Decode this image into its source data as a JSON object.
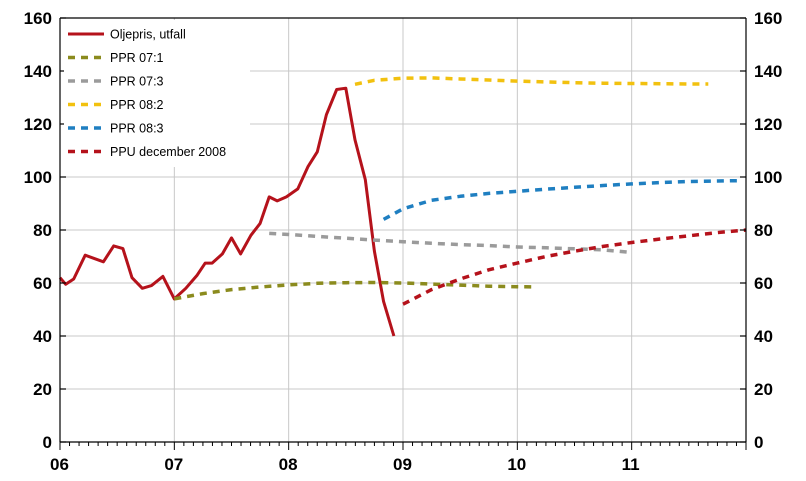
{
  "chart_data": {
    "type": "line",
    "x_tick_labels": [
      "06",
      "07",
      "08",
      "09",
      "10",
      "11"
    ],
    "x_range": [
      2006.0,
      2012.0
    ],
    "ylim": [
      0,
      160
    ],
    "y_ticks": [
      0,
      20,
      40,
      60,
      80,
      100,
      120,
      140,
      160
    ],
    "grid": true,
    "legend_position": "top-left",
    "series": [
      {
        "name": "Oljepris, utfall",
        "color": "#b5121b",
        "style": "solid",
        "points": [
          [
            2006.0,
            62
          ],
          [
            2006.05,
            59.5
          ],
          [
            2006.12,
            61.5
          ],
          [
            2006.22,
            70.5
          ],
          [
            2006.38,
            68
          ],
          [
            2006.47,
            74
          ],
          [
            2006.55,
            73
          ],
          [
            2006.63,
            62
          ],
          [
            2006.72,
            58
          ],
          [
            2006.8,
            59
          ],
          [
            2006.9,
            62.5
          ],
          [
            2007.0,
            54
          ],
          [
            2007.1,
            58
          ],
          [
            2007.2,
            63
          ],
          [
            2007.27,
            67.5
          ],
          [
            2007.33,
            67.5
          ],
          [
            2007.42,
            71
          ],
          [
            2007.5,
            77
          ],
          [
            2007.58,
            71
          ],
          [
            2007.67,
            78
          ],
          [
            2007.75,
            82.5
          ],
          [
            2007.83,
            92.5
          ],
          [
            2007.9,
            91
          ],
          [
            2007.98,
            92.5
          ],
          [
            2008.08,
            95.5
          ],
          [
            2008.17,
            104
          ],
          [
            2008.25,
            109.5
          ],
          [
            2008.33,
            123.5
          ],
          [
            2008.42,
            133
          ],
          [
            2008.5,
            133.5
          ],
          [
            2008.58,
            114
          ],
          [
            2008.67,
            99
          ],
          [
            2008.75,
            72
          ],
          [
            2008.83,
            53
          ],
          [
            2008.92,
            40
          ]
        ]
      },
      {
        "name": "PPR 07:1",
        "color": "#8b8b1e",
        "style": "dashed",
        "points": [
          [
            2007.0,
            54
          ],
          [
            2007.25,
            56
          ],
          [
            2007.5,
            57.5
          ],
          [
            2007.75,
            58.5
          ],
          [
            2008.0,
            59.3
          ],
          [
            2008.25,
            59.9
          ],
          [
            2008.5,
            60.1
          ],
          [
            2008.75,
            60.2
          ],
          [
            2009.0,
            60
          ],
          [
            2009.25,
            59.6
          ],
          [
            2009.5,
            59.2
          ],
          [
            2009.75,
            58.8
          ],
          [
            2010.0,
            58.6
          ],
          [
            2010.17,
            58.5
          ]
        ]
      },
      {
        "name": "PPR 07:3",
        "color": "#9b9b9b",
        "style": "dashed",
        "points": [
          [
            2007.83,
            78.7
          ],
          [
            2008.0,
            78.3
          ],
          [
            2008.25,
            77.6
          ],
          [
            2008.5,
            76.9
          ],
          [
            2008.75,
            76.2
          ],
          [
            2009.0,
            75.6
          ],
          [
            2009.25,
            75
          ],
          [
            2009.5,
            74.5
          ],
          [
            2009.75,
            74.1
          ],
          [
            2010.0,
            73.6
          ],
          [
            2010.25,
            73.3
          ],
          [
            2010.5,
            72.9
          ],
          [
            2010.75,
            72.5
          ],
          [
            2011.0,
            71.5
          ]
        ]
      },
      {
        "name": "PPR 08:2",
        "color": "#f2c10f",
        "style": "dashed",
        "points": [
          [
            2008.58,
            135
          ],
          [
            2008.75,
            136.5
          ],
          [
            2009.0,
            137.3
          ],
          [
            2009.25,
            137.4
          ],
          [
            2009.5,
            137
          ],
          [
            2009.75,
            136.6
          ],
          [
            2010.0,
            136.2
          ],
          [
            2010.25,
            135.9
          ],
          [
            2010.5,
            135.6
          ],
          [
            2010.75,
            135.4
          ],
          [
            2011.0,
            135.3
          ],
          [
            2011.25,
            135.2
          ],
          [
            2011.5,
            135.1
          ],
          [
            2011.67,
            135.1
          ]
        ]
      },
      {
        "name": "PPR 08:3",
        "color": "#1f7fc1",
        "style": "dashed",
        "points": [
          [
            2008.83,
            84
          ],
          [
            2009.0,
            88
          ],
          [
            2009.25,
            91.2
          ],
          [
            2009.5,
            92.7
          ],
          [
            2009.75,
            93.8
          ],
          [
            2010.0,
            94.6
          ],
          [
            2010.25,
            95.4
          ],
          [
            2010.5,
            96.1
          ],
          [
            2010.75,
            96.8
          ],
          [
            2011.0,
            97.4
          ],
          [
            2011.25,
            97.9
          ],
          [
            2011.5,
            98.3
          ],
          [
            2011.75,
            98.5
          ],
          [
            2011.92,
            98.6
          ]
        ]
      },
      {
        "name": "PPU december 2008",
        "color": "#b5121b",
        "style": "dashed",
        "points": [
          [
            2009.0,
            52
          ],
          [
            2009.25,
            57.5
          ],
          [
            2009.5,
            61.5
          ],
          [
            2009.75,
            65
          ],
          [
            2010.0,
            67.5
          ],
          [
            2010.25,
            70
          ],
          [
            2010.5,
            72
          ],
          [
            2010.75,
            73.8
          ],
          [
            2011.0,
            75.3
          ],
          [
            2011.25,
            76.6
          ],
          [
            2011.5,
            77.8
          ],
          [
            2011.75,
            79
          ],
          [
            2012.0,
            80
          ]
        ]
      }
    ]
  }
}
